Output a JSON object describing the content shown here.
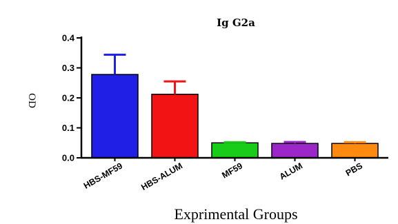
{
  "chart_data": {
    "type": "bar",
    "title": "Ig G2a",
    "xlabel": "Exprimental Groups",
    "ylabel": "OD",
    "ylim": [
      0,
      0.4
    ],
    "yticks": [
      0.0,
      0.1,
      0.2,
      0.3,
      0.4
    ],
    "ytick_labels": [
      "0.0",
      "0.1",
      "0.2",
      "0.3",
      "0.4"
    ],
    "categories": [
      "HBS-MF59",
      "HBS-ALUM",
      "MF59",
      "ALUM",
      "PBS"
    ],
    "values": [
      0.278,
      0.212,
      0.05,
      0.048,
      0.048
    ],
    "errors": [
      0.066,
      0.043,
      0.002,
      0.005,
      0.004
    ],
    "colors": [
      "#1f1fe6",
      "#f21414",
      "#19cc19",
      "#9c27c9",
      "#ff8a10"
    ],
    "grid": false,
    "legend": "none"
  }
}
